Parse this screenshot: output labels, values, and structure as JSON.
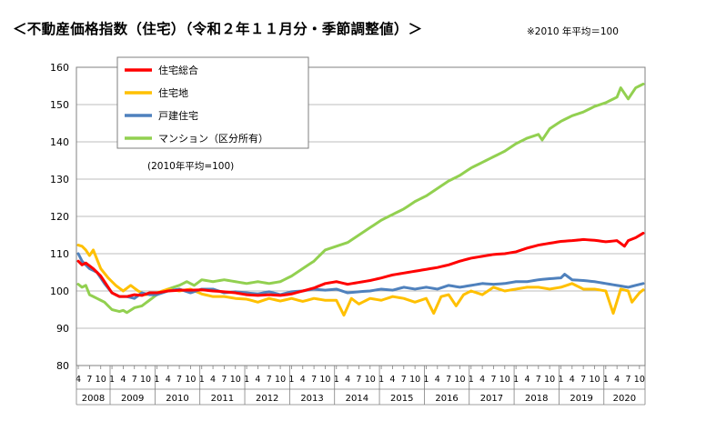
{
  "header": {
    "title": "＜不動産価格指数（住宅）（令和２年１１月分・季節調整値）＞",
    "note": "※2010 年平均＝100"
  },
  "chart_data": {
    "type": "line",
    "base_note": "(2010年平均=100)",
    "ylim": [
      80,
      160
    ],
    "yticks": [
      "80",
      "90",
      "100",
      "110",
      "120",
      "130",
      "140",
      "150",
      "160"
    ],
    "month_tick_labels": [
      "4",
      "7",
      "10",
      "1"
    ],
    "years": [
      "2008",
      "2009",
      "2010",
      "2011",
      "2012",
      "2013",
      "2014",
      "2015",
      "2016",
      "2017",
      "2018",
      "2019",
      "2020"
    ],
    "x_start": "2008-04",
    "x_end": "2020-11",
    "grid": true,
    "legend_position": "top-left",
    "series": [
      {
        "name": "住宅総合",
        "color": "#ff0000",
        "anchors": [
          [
            "2008-04",
            108
          ],
          [
            "2008-05",
            107
          ],
          [
            "2008-06",
            107.5
          ],
          [
            "2008-08",
            106
          ],
          [
            "2008-10",
            104
          ],
          [
            "2008-12",
            101
          ],
          [
            "2009-01",
            99.5
          ],
          [
            "2009-03",
            98.5
          ],
          [
            "2009-05",
            98.5
          ],
          [
            "2009-07",
            99
          ],
          [
            "2009-09",
            98.8
          ],
          [
            "2009-11",
            99.5
          ],
          [
            "2010-01",
            99.5
          ],
          [
            "2010-04",
            100
          ],
          [
            "2010-07",
            100.2
          ],
          [
            "2010-10",
            100.2
          ],
          [
            "2011-01",
            100.3
          ],
          [
            "2011-04",
            100
          ],
          [
            "2011-07",
            99.8
          ],
          [
            "2011-10",
            99.5
          ],
          [
            "2012-01",
            99
          ],
          [
            "2012-04",
            98.8
          ],
          [
            "2012-07",
            99
          ],
          [
            "2012-10",
            98.8
          ],
          [
            "2013-01",
            99.2
          ],
          [
            "2013-04",
            100
          ],
          [
            "2013-07",
            100.8
          ],
          [
            "2013-10",
            102
          ],
          [
            "2014-01",
            102.5
          ],
          [
            "2014-04",
            101.8
          ],
          [
            "2014-07",
            102.3
          ],
          [
            "2014-10",
            102.8
          ],
          [
            "2015-01",
            103.5
          ],
          [
            "2015-04",
            104.3
          ],
          [
            "2015-07",
            104.8
          ],
          [
            "2015-10",
            105.3
          ],
          [
            "2016-01",
            105.8
          ],
          [
            "2016-04",
            106.3
          ],
          [
            "2016-07",
            107
          ],
          [
            "2016-10",
            108
          ],
          [
            "2017-01",
            108.8
          ],
          [
            "2017-04",
            109.3
          ],
          [
            "2017-07",
            109.8
          ],
          [
            "2017-10",
            110
          ],
          [
            "2018-01",
            110.5
          ],
          [
            "2018-04",
            111.5
          ],
          [
            "2018-07",
            112.3
          ],
          [
            "2018-10",
            112.8
          ],
          [
            "2019-01",
            113.3
          ],
          [
            "2019-04",
            113.5
          ],
          [
            "2019-07",
            113.8
          ],
          [
            "2019-10",
            113.6
          ],
          [
            "2020-01",
            113.2
          ],
          [
            "2020-04",
            113.5
          ],
          [
            "2020-06",
            112
          ],
          [
            "2020-07",
            113.5
          ],
          [
            "2020-09",
            114.3
          ],
          [
            "2020-11",
            115.5
          ]
        ]
      },
      {
        "name": "住宅地",
        "color": "#ffc000",
        "anchors": [
          [
            "2008-04",
            112.3
          ],
          [
            "2008-05",
            112
          ],
          [
            "2008-06",
            111
          ],
          [
            "2008-07",
            109.5
          ],
          [
            "2008-08",
            111
          ],
          [
            "2008-10",
            106
          ],
          [
            "2008-12",
            103.5
          ],
          [
            "2009-02",
            101.5
          ],
          [
            "2009-04",
            100
          ],
          [
            "2009-06",
            101.5
          ],
          [
            "2009-08",
            100
          ],
          [
            "2009-10",
            99
          ],
          [
            "2010-01",
            99.5
          ],
          [
            "2010-04",
            100.5
          ],
          [
            "2010-07",
            100
          ],
          [
            "2010-10",
            100.5
          ],
          [
            "2011-01",
            99.2
          ],
          [
            "2011-04",
            98.5
          ],
          [
            "2011-07",
            98.5
          ],
          [
            "2011-10",
            98
          ],
          [
            "2012-01",
            97.8
          ],
          [
            "2012-04",
            97
          ],
          [
            "2012-07",
            98
          ],
          [
            "2012-10",
            97.3
          ],
          [
            "2013-01",
            98
          ],
          [
            "2013-04",
            97.2
          ],
          [
            "2013-07",
            98
          ],
          [
            "2013-10",
            97.5
          ],
          [
            "2014-01",
            97.5
          ],
          [
            "2014-03",
            93.5
          ],
          [
            "2014-05",
            98
          ],
          [
            "2014-07",
            96.5
          ],
          [
            "2014-10",
            98
          ],
          [
            "2015-01",
            97.5
          ],
          [
            "2015-04",
            98.5
          ],
          [
            "2015-07",
            98
          ],
          [
            "2015-10",
            97
          ],
          [
            "2016-01",
            98
          ],
          [
            "2016-03",
            94
          ],
          [
            "2016-05",
            98.5
          ],
          [
            "2016-07",
            99
          ],
          [
            "2016-09",
            96
          ],
          [
            "2016-11",
            99
          ],
          [
            "2017-01",
            100
          ],
          [
            "2017-04",
            99
          ],
          [
            "2017-07",
            101
          ],
          [
            "2017-10",
            100
          ],
          [
            "2018-01",
            100.5
          ],
          [
            "2018-04",
            101
          ],
          [
            "2018-07",
            101
          ],
          [
            "2018-10",
            100.5
          ],
          [
            "2019-01",
            101
          ],
          [
            "2019-04",
            102
          ],
          [
            "2019-07",
            100.5
          ],
          [
            "2019-10",
            100.5
          ],
          [
            "2020-01",
            100
          ],
          [
            "2020-03",
            94
          ],
          [
            "2020-05",
            100.5
          ],
          [
            "2020-07",
            100
          ],
          [
            "2020-08",
            97
          ],
          [
            "2020-10",
            99.5
          ],
          [
            "2020-11",
            100.3
          ]
        ]
      },
      {
        "name": "戸建住宅",
        "color": "#4f81bd",
        "anchors": [
          [
            "2008-04",
            110
          ],
          [
            "2008-05",
            108
          ],
          [
            "2008-07",
            106
          ],
          [
            "2008-09",
            105
          ],
          [
            "2008-11",
            102
          ],
          [
            "2009-01",
            99.5
          ],
          [
            "2009-03",
            98.5
          ],
          [
            "2009-05",
            98.5
          ],
          [
            "2009-07",
            98
          ],
          [
            "2009-09",
            99.5
          ],
          [
            "2009-11",
            99
          ],
          [
            "2010-01",
            99
          ],
          [
            "2010-04",
            100
          ],
          [
            "2010-07",
            100.5
          ],
          [
            "2010-10",
            99.5
          ],
          [
            "2011-01",
            100.5
          ],
          [
            "2011-04",
            100.5
          ],
          [
            "2011-07",
            99.5
          ],
          [
            "2011-10",
            99.8
          ],
          [
            "2012-01",
            99.5
          ],
          [
            "2012-04",
            99.2
          ],
          [
            "2012-07",
            99.8
          ],
          [
            "2012-10",
            99
          ],
          [
            "2013-01",
            99.8
          ],
          [
            "2013-04",
            100
          ],
          [
            "2013-07",
            100.5
          ],
          [
            "2013-10",
            100.2
          ],
          [
            "2014-01",
            100.5
          ],
          [
            "2014-04",
            99.5
          ],
          [
            "2014-07",
            99.8
          ],
          [
            "2014-10",
            100
          ],
          [
            "2015-01",
            100.5
          ],
          [
            "2015-04",
            100.2
          ],
          [
            "2015-07",
            101
          ],
          [
            "2015-10",
            100.5
          ],
          [
            "2016-01",
            101
          ],
          [
            "2016-04",
            100.5
          ],
          [
            "2016-07",
            101.5
          ],
          [
            "2016-10",
            101
          ],
          [
            "2017-01",
            101.5
          ],
          [
            "2017-04",
            102
          ],
          [
            "2017-07",
            101.8
          ],
          [
            "2017-10",
            102
          ],
          [
            "2018-01",
            102.5
          ],
          [
            "2018-04",
            102.5
          ],
          [
            "2018-07",
            103
          ],
          [
            "2018-10",
            103.3
          ],
          [
            "2019-01",
            103.5
          ],
          [
            "2019-02",
            104.5
          ],
          [
            "2019-04",
            103
          ],
          [
            "2019-07",
            102.8
          ],
          [
            "2019-10",
            102.5
          ],
          [
            "2020-01",
            102
          ],
          [
            "2020-04",
            101.5
          ],
          [
            "2020-07",
            101
          ],
          [
            "2020-09",
            101.5
          ],
          [
            "2020-11",
            102
          ]
        ]
      },
      {
        "name": "マンション（区分所有）",
        "color": "#92d050",
        "anchors": [
          [
            "2008-04",
            101.8
          ],
          [
            "2008-05",
            101
          ],
          [
            "2008-06",
            101.5
          ],
          [
            "2008-07",
            99
          ],
          [
            "2008-09",
            98
          ],
          [
            "2008-11",
            97
          ],
          [
            "2009-01",
            95
          ],
          [
            "2009-03",
            94.5
          ],
          [
            "2009-04",
            94.8
          ],
          [
            "2009-05",
            94.2
          ],
          [
            "2009-07",
            95.5
          ],
          [
            "2009-09",
            96
          ],
          [
            "2009-11",
            97.5
          ],
          [
            "2010-01",
            99
          ],
          [
            "2010-04",
            100.5
          ],
          [
            "2010-07",
            101.5
          ],
          [
            "2010-09",
            102.5
          ],
          [
            "2010-11",
            101.5
          ],
          [
            "2011-01",
            103
          ],
          [
            "2011-04",
            102.5
          ],
          [
            "2011-07",
            103
          ],
          [
            "2011-10",
            102.5
          ],
          [
            "2012-01",
            102
          ],
          [
            "2012-04",
            102.5
          ],
          [
            "2012-07",
            102
          ],
          [
            "2012-10",
            102.5
          ],
          [
            "2013-01",
            104
          ],
          [
            "2013-04",
            106
          ],
          [
            "2013-07",
            108
          ],
          [
            "2013-10",
            111
          ],
          [
            "2014-01",
            112
          ],
          [
            "2014-04",
            113
          ],
          [
            "2014-07",
            115
          ],
          [
            "2014-10",
            117
          ],
          [
            "2015-01",
            119
          ],
          [
            "2015-04",
            120.5
          ],
          [
            "2015-07",
            122
          ],
          [
            "2015-10",
            124
          ],
          [
            "2016-01",
            125.5
          ],
          [
            "2016-04",
            127.5
          ],
          [
            "2016-07",
            129.5
          ],
          [
            "2016-10",
            131
          ],
          [
            "2017-01",
            133
          ],
          [
            "2017-04",
            134.5
          ],
          [
            "2017-07",
            136
          ],
          [
            "2017-10",
            137.5
          ],
          [
            "2018-01",
            139.5
          ],
          [
            "2018-04",
            141
          ],
          [
            "2018-07",
            142
          ],
          [
            "2018-08",
            140.5
          ],
          [
            "2018-10",
            143.5
          ],
          [
            "2019-01",
            145.5
          ],
          [
            "2019-04",
            147
          ],
          [
            "2019-07",
            148
          ],
          [
            "2019-10",
            149.5
          ],
          [
            "2020-01",
            150.5
          ],
          [
            "2020-04",
            152
          ],
          [
            "2020-05",
            154.5
          ],
          [
            "2020-07",
            151.5
          ],
          [
            "2020-09",
            154.5
          ],
          [
            "2020-11",
            155.5
          ]
        ]
      }
    ]
  }
}
